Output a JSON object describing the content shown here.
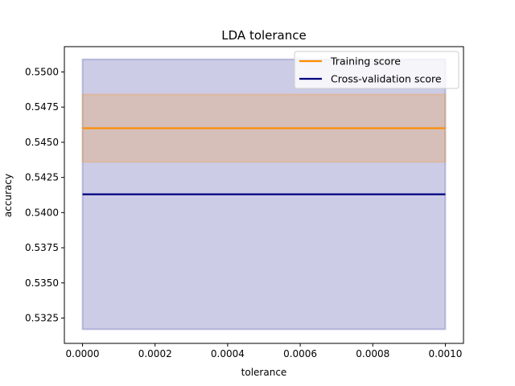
{
  "chart_data": {
    "type": "line",
    "title": "LDA tolerance",
    "xlabel": "tolerance",
    "ylabel": "accuracy",
    "xlim": [
      -5e-05,
      0.00105
    ],
    "ylim": [
      0.5307,
      0.5518
    ],
    "xticks": [
      0.0,
      0.0002,
      0.0004,
      0.0006,
      0.0008,
      0.001
    ],
    "xtick_labels": [
      "0.0000",
      "0.0002",
      "0.0004",
      "0.0006",
      "0.0008",
      "0.0010"
    ],
    "yticks": [
      0.5325,
      0.535,
      0.5375,
      0.54,
      0.5425,
      0.545,
      0.5475,
      0.55
    ],
    "ytick_labels": [
      "0.5325",
      "0.5350",
      "0.5375",
      "0.5400",
      "0.5425",
      "0.5450",
      "0.5475",
      "0.5500"
    ],
    "x": [
      0.0,
      0.001
    ],
    "series": [
      {
        "name": "Training score",
        "color": "#ff8c00",
        "values": [
          0.546,
          0.546
        ],
        "band_lower": [
          0.5436,
          0.5436
        ],
        "band_upper": [
          0.5484,
          0.5484
        ]
      },
      {
        "name": "Cross-validation score",
        "color": "#000080",
        "values": [
          0.5413,
          0.5413
        ],
        "band_lower": [
          0.5317,
          0.5317
        ],
        "band_upper": [
          0.5509,
          0.5509
        ]
      }
    ],
    "grid": false,
    "legend_position": "top-right"
  }
}
